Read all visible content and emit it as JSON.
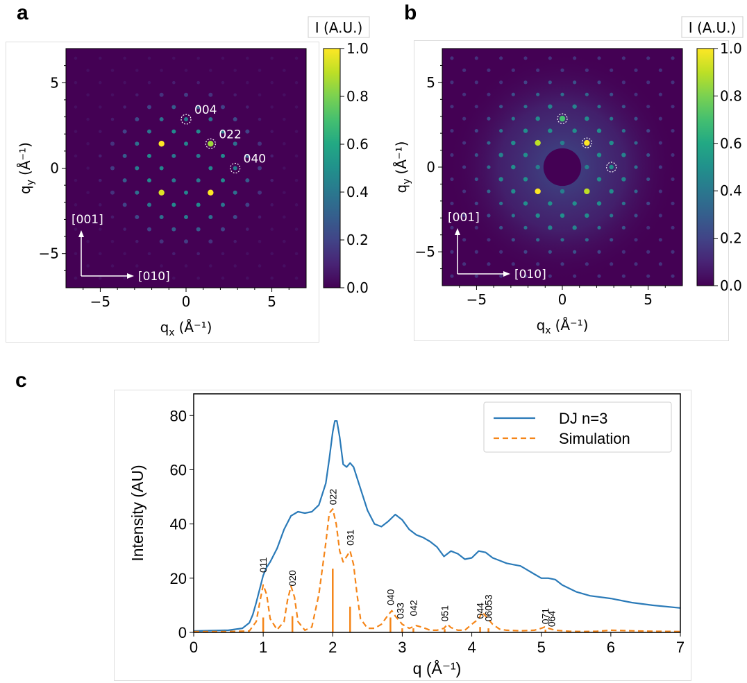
{
  "panel_labels": {
    "a": "a",
    "b": "b",
    "c": "c"
  },
  "colors": {
    "viridis_low": "#440154",
    "viridis_high": "#fde725",
    "series_measured": "#2a7ab8",
    "series_simulation": "#f58518",
    "overlay": "#ffffff"
  },
  "chart_data": [
    {
      "type": "heatmap",
      "panel": "a",
      "colorbar_title": "I (A.U.)",
      "xlabel": "q",
      "xlabel_sub": "x",
      "ylabel": "q",
      "ylabel_sub": "y",
      "axis_unit": "(Å⁻¹)",
      "xlim": [
        -7,
        7
      ],
      "ylim": [
        -7,
        7
      ],
      "xticks": [
        -5,
        0,
        5
      ],
      "yticks": [
        -5,
        0,
        5
      ],
      "colorbar_ticks": [
        "0.0",
        "0.2",
        "0.4",
        "0.6",
        "0.8",
        "1.0"
      ],
      "colorbar_range": [
        0,
        1
      ],
      "direction_up": "[001]",
      "direction_right": "[010]",
      "annotations": [
        {
          "label": "004",
          "qx": 0,
          "qy": 2.86
        },
        {
          "label": "022",
          "qx": 1.43,
          "qy": 1.43
        },
        {
          "label": "040",
          "qx": 2.86,
          "qy": 0
        }
      ],
      "lattice_spacing": 0.715,
      "spots": [
        {
          "qx": -1.43,
          "qy": 1.43,
          "i": 1.0
        },
        {
          "qx": 1.43,
          "qy": 1.43,
          "i": 0.85
        },
        {
          "qx": -1.43,
          "qy": -1.43,
          "i": 0.95
        },
        {
          "qx": 1.43,
          "qy": -1.43,
          "i": 1.0
        }
      ]
    },
    {
      "type": "heatmap",
      "panel": "b",
      "colorbar_title": "I (A.U.)",
      "xlabel": "q",
      "xlabel_sub": "x",
      "ylabel": "q",
      "ylabel_sub": "y",
      "axis_unit": "(Å⁻¹)",
      "xlim": [
        -7,
        7
      ],
      "ylim": [
        -7,
        7
      ],
      "xticks": [
        -5,
        0,
        5
      ],
      "yticks": [
        -5,
        0,
        5
      ],
      "colorbar_ticks": [
        "0.0",
        "0.2",
        "0.4",
        "0.6",
        "0.8",
        "1.0"
      ],
      "colorbar_range": [
        0,
        1
      ],
      "direction_up": "[001]",
      "direction_right": "[010]",
      "beam_stop_radius": 1.1,
      "annotations": [
        {
          "label": "",
          "qx": 0,
          "qy": 2.86
        },
        {
          "label": "",
          "qx": 1.43,
          "qy": 1.43
        },
        {
          "label": "",
          "qx": 2.86,
          "qy": 0
        }
      ],
      "lattice_spacing": 0.715,
      "spots": [
        {
          "qx": -1.43,
          "qy": 1.43,
          "i": 0.9
        },
        {
          "qx": 1.43,
          "qy": 1.43,
          "i": 1.0
        },
        {
          "qx": -1.43,
          "qy": -1.43,
          "i": 1.0
        },
        {
          "qx": 1.43,
          "qy": -1.43,
          "i": 0.9
        },
        {
          "qx": 0,
          "qy": 2.86,
          "i": 0.7
        }
      ]
    },
    {
      "type": "line",
      "panel": "c",
      "xlabel": "q (Å⁻¹)",
      "ylabel": "Intensity (AU)",
      "xlim": [
        0,
        7
      ],
      "ylim": [
        0,
        88
      ],
      "xticks": [
        0,
        1,
        2,
        3,
        4,
        5,
        6,
        7
      ],
      "yticks": [
        0,
        20,
        40,
        60,
        80
      ],
      "legend_position": "top-right",
      "series": [
        {
          "name": "DJ n=3",
          "style": "solid",
          "x": [
            0,
            0.5,
            0.7,
            0.8,
            0.85,
            0.9,
            0.95,
            1.0,
            1.05,
            1.1,
            1.2,
            1.3,
            1.4,
            1.5,
            1.6,
            1.7,
            1.8,
            1.9,
            1.95,
            2.0,
            2.03,
            2.06,
            2.1,
            2.15,
            2.2,
            2.25,
            2.3,
            2.4,
            2.5,
            2.6,
            2.7,
            2.8,
            2.9,
            3.0,
            3.1,
            3.2,
            3.3,
            3.4,
            3.5,
            3.6,
            3.7,
            3.8,
            3.9,
            4.0,
            4.1,
            4.2,
            4.3,
            4.4,
            4.5,
            4.6,
            4.7,
            4.8,
            4.9,
            5.0,
            5.1,
            5.2,
            5.3,
            5.5,
            5.7,
            6.0,
            6.3,
            6.6,
            7.0
          ],
          "y": [
            0.5,
            0.8,
            1.5,
            3.5,
            6.5,
            11,
            16,
            21,
            24,
            26,
            31,
            38,
            43,
            44.5,
            44,
            44.5,
            47,
            55,
            64,
            74,
            78,
            78,
            72,
            62,
            61,
            62.5,
            61,
            53,
            45,
            40,
            39,
            41,
            43.5,
            41.5,
            38,
            36,
            35,
            33.5,
            31.5,
            28,
            30,
            29,
            27,
            27.5,
            30,
            29.5,
            27.5,
            26.5,
            25.5,
            25,
            24.5,
            23,
            21.5,
            20,
            20,
            19.5,
            17.5,
            15,
            13.5,
            12.5,
            11,
            10,
            9
          ]
        },
        {
          "name": "Simulation",
          "style": "dashed",
          "x": [
            0,
            0.5,
            0.8,
            0.9,
            0.95,
            1.0,
            1.05,
            1.1,
            1.2,
            1.3,
            1.35,
            1.4,
            1.45,
            1.5,
            1.6,
            1.7,
            1.8,
            1.9,
            1.95,
            2.0,
            2.05,
            2.1,
            2.15,
            2.2,
            2.25,
            2.3,
            2.35,
            2.4,
            2.5,
            2.6,
            2.7,
            2.8,
            2.85,
            2.9,
            3.0,
            3.1,
            3.15,
            3.2,
            3.3,
            3.4,
            3.5,
            3.6,
            3.65,
            3.7,
            3.8,
            3.9,
            4.0,
            4.1,
            4.15,
            4.2,
            4.3,
            4.4,
            4.5,
            4.7,
            4.9,
            5.0,
            5.05,
            5.1,
            5.2,
            5.4,
            5.6,
            5.8,
            6.0,
            6.3,
            6.6,
            7.0
          ],
          "y": [
            0.3,
            0.3,
            0.5,
            4,
            11,
            17.5,
            14,
            5,
            1,
            4,
            12,
            17,
            13,
            4,
            0.8,
            2,
            14,
            33,
            44,
            45.5,
            40,
            30,
            26,
            28,
            30,
            25,
            14,
            5,
            1.5,
            1.5,
            3,
            6.5,
            8,
            6,
            3,
            1.5,
            2,
            2.5,
            1.8,
            0.8,
            0.8,
            1.5,
            3,
            1.8,
            0.8,
            0.8,
            3,
            5,
            7.5,
            6,
            3,
            1.2,
            0.8,
            0.6,
            0.8,
            1.5,
            2,
            1.5,
            0.8,
            0.4,
            0.3,
            0.4,
            0.8,
            0.6,
            0.4,
            0.3
          ]
        }
      ],
      "sticks": [
        {
          "x": 1.0,
          "y": 5.5
        },
        {
          "x": 1.42,
          "y": 6
        },
        {
          "x": 2.0,
          "y": 23.5
        },
        {
          "x": 2.25,
          "y": 9.5
        },
        {
          "x": 2.83,
          "y": 5.5
        },
        {
          "x": 3.0,
          "y": 1.5
        },
        {
          "x": 3.16,
          "y": 1.5
        },
        {
          "x": 3.61,
          "y": 1.2
        },
        {
          "x": 4.12,
          "y": 2
        },
        {
          "x": 4.24,
          "y": 1.5
        },
        {
          "x": 5.06,
          "y": 1
        }
      ],
      "peak_labels": [
        {
          "label": "011",
          "x": 1.0,
          "y": 22
        },
        {
          "label": "020",
          "x": 1.42,
          "y": 17
        },
        {
          "label": "022",
          "x": 2.0,
          "y": 47
        },
        {
          "label": "031",
          "x": 2.25,
          "y": 32
        },
        {
          "label": "040",
          "x": 2.83,
          "y": 10
        },
        {
          "label": "033",
          "x": 2.97,
          "y": 5
        },
        {
          "label": "042",
          "x": 3.16,
          "y": 6
        },
        {
          "label": "051",
          "x": 3.61,
          "y": 4
        },
        {
          "label": "044",
          "x": 4.12,
          "y": 5
        },
        {
          "label": "053",
          "x": 4.24,
          "y": 8
        },
        {
          "label": "060",
          "x": 4.24,
          "y": 4
        },
        {
          "label": "071",
          "x": 5.06,
          "y": 3
        },
        {
          "label": "064",
          "x": 5.15,
          "y": 2
        }
      ]
    }
  ]
}
